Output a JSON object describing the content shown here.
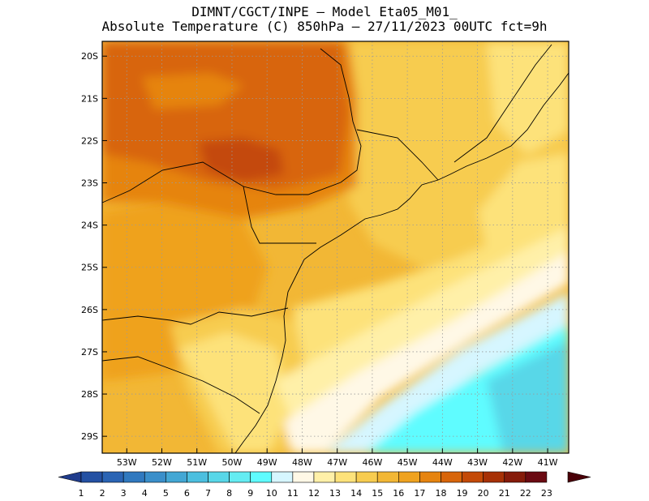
{
  "header": {
    "line1": "DIMNT/CGCT/INPE –  Model Eta05_M01_",
    "line2": "Absolute Temperature (C) 850hPa –  27/11/2023 00UTC fct=9h"
  },
  "map": {
    "lat_labels": [
      "20S",
      "21S",
      "22S",
      "23S",
      "24S",
      "25S",
      "26S",
      "27S",
      "28S",
      "29S"
    ],
    "lon_labels": [
      "53W",
      "52W",
      "51W",
      "50W",
      "49W",
      "48W",
      "47W",
      "46W",
      "45W",
      "44W",
      "43W",
      "42W",
      "41W"
    ],
    "lat_values": [
      -20,
      -21,
      -22,
      -23,
      -24,
      -25,
      -26,
      -27,
      -28,
      -29
    ],
    "lon_values": [
      -53,
      -52,
      -51,
      -50,
      -49,
      -48,
      -47,
      -46,
      -45,
      -44,
      -43,
      -42,
      -41
    ],
    "grid": "dotted",
    "dominant_fields": [
      {
        "region": "north-west interior",
        "temp_c": 19
      },
      {
        "region": "central/south-west",
        "temp_c": 16
      },
      {
        "region": "south coast",
        "temp_c": 12
      },
      {
        "region": "south-east ocean",
        "temp_c": 9
      }
    ]
  },
  "colorbar": {
    "labels": [
      "1",
      "2",
      "3",
      "4",
      "5",
      "6",
      "7",
      "8",
      "9",
      "10",
      "11",
      "12",
      "13",
      "14",
      "15",
      "16",
      "17",
      "18",
      "19",
      "20",
      "21",
      "22",
      "23"
    ],
    "colors": [
      "#1f3c8c",
      "#2451a3",
      "#2a64b4",
      "#3079bf",
      "#3a8fca",
      "#43a7d4",
      "#4cbfdf",
      "#58d7e8",
      "#64ecf2",
      "#5ffcff",
      "#d6f6ff",
      "#fff8e6",
      "#fff0a8",
      "#fde27a",
      "#f7cc50",
      "#f2b735",
      "#efa21f",
      "#e6840f",
      "#d8650a",
      "#c44a07",
      "#a73106",
      "#861b0a",
      "#6b0a12",
      "#4a0008"
    ]
  }
}
